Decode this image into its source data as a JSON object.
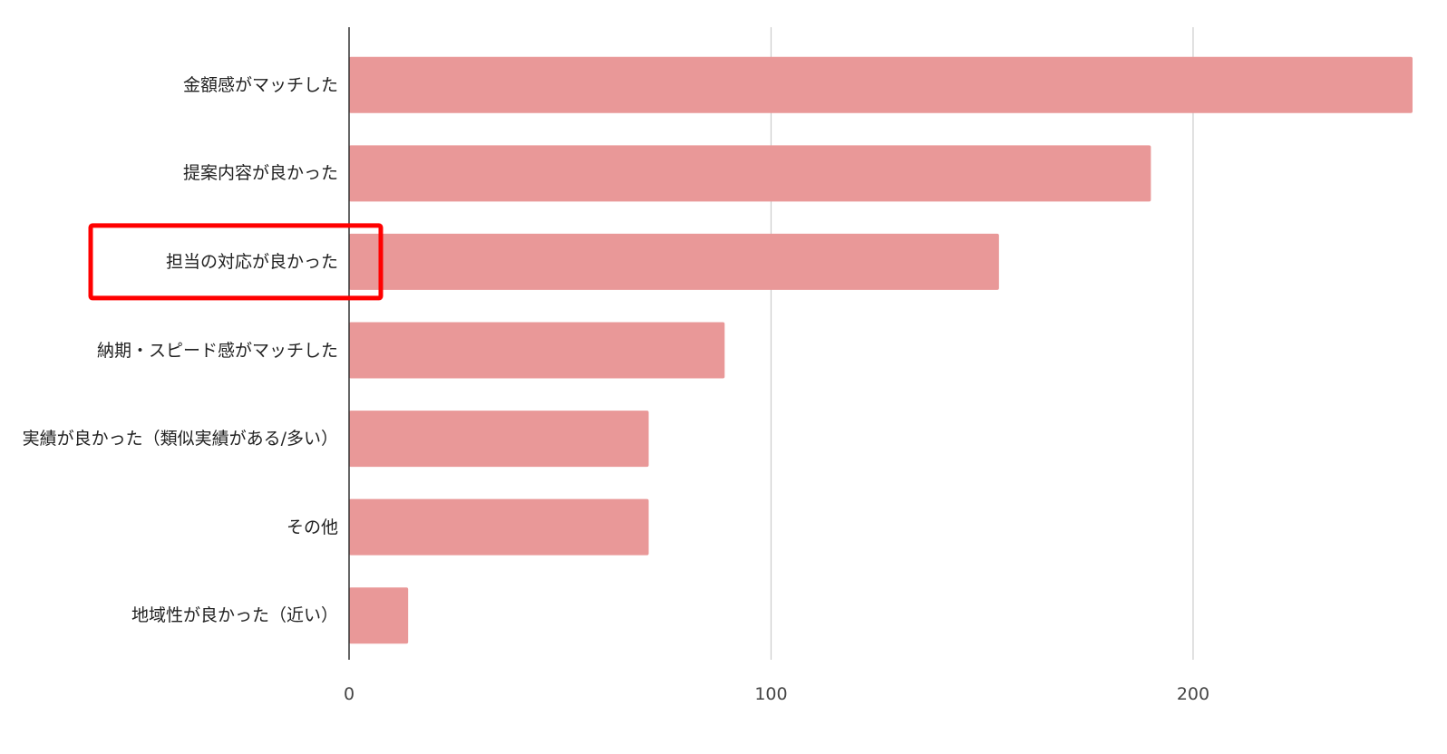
{
  "chart_data": {
    "type": "bar",
    "orientation": "horizontal",
    "categories": [
      "金額感がマッチした",
      "提案内容が良かった",
      "担当の対応が良かった",
      "納期・スピード感がマッチした",
      "実績が良かった（類似実績がある/多い）",
      "その他",
      "地域性が良かった（近い）"
    ],
    "values": [
      252,
      190,
      154,
      89,
      71,
      71,
      14
    ],
    "color": "#e99898",
    "xlim": [
      0,
      252
    ],
    "xticks": [
      0,
      100,
      200
    ],
    "grid": true
  }
}
